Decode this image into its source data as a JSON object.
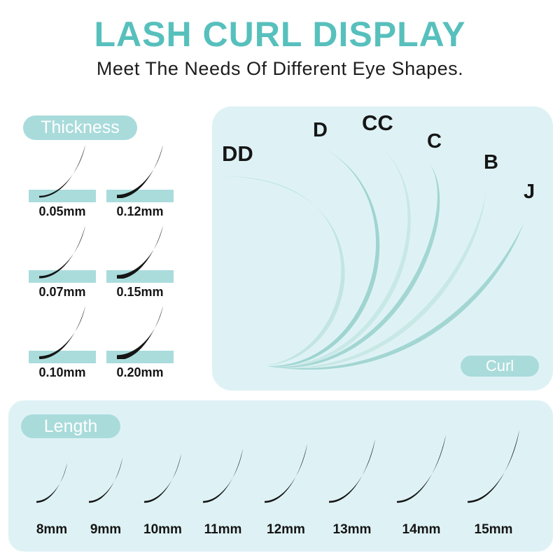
{
  "header": {
    "title": "LASH CURL DISPLAY",
    "subtitle": "Meet The Needs Of Different Eye Shapes."
  },
  "thickness": {
    "badge": "Thickness",
    "items": [
      {
        "label": "0.05mm"
      },
      {
        "label": "0.12mm"
      },
      {
        "label": "0.07mm"
      },
      {
        "label": "0.15mm"
      },
      {
        "label": "0.10mm"
      },
      {
        "label": "0.20mm"
      }
    ]
  },
  "curl": {
    "badge": "Curl",
    "items": [
      {
        "label": "DD"
      },
      {
        "label": "D"
      },
      {
        "label": "CC"
      },
      {
        "label": "C"
      },
      {
        "label": "B"
      },
      {
        "label": "J"
      }
    ]
  },
  "length": {
    "badge": "Length",
    "items": [
      {
        "label": "8mm"
      },
      {
        "label": "9mm"
      },
      {
        "label": "10mm"
      },
      {
        "label": "11mm"
      },
      {
        "label": "12mm"
      },
      {
        "label": "13mm"
      },
      {
        "label": "14mm"
      },
      {
        "label": "15mm"
      }
    ]
  },
  "colors": {
    "accent_teal": "#57c0bd",
    "badge_bg": "#a9dbdb",
    "panel_bg": "#def2f5",
    "strip_bg": "#aadcdc",
    "curl_light": "#c8e8e6",
    "curl_dark": "#9fd4d0",
    "lash_black": "#151515",
    "text_dark": "#1d1d1d"
  }
}
